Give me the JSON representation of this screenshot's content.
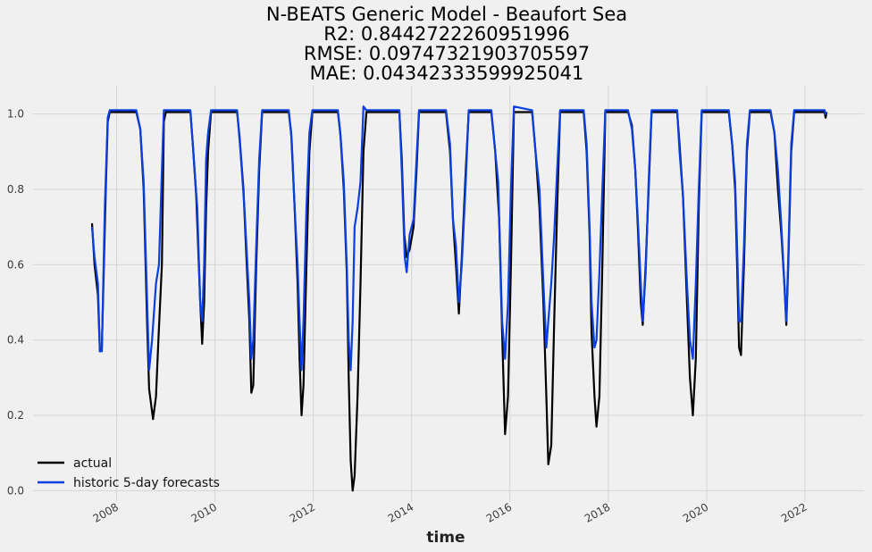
{
  "chart_data": {
    "type": "line",
    "title_lines": [
      "N-BEATS Generic Model - Beaufort Sea",
      "R2: 0.8442722260951996",
      "RMSE: 0.09747321903705597",
      "MAE: 0.04342333599925041"
    ],
    "xlabel": "time",
    "ylabel": "",
    "xlim": [
      2006.3,
      2023.2
    ],
    "ylim": [
      -0.03,
      1.075
    ],
    "x_ticks": [
      2008,
      2010,
      2012,
      2014,
      2016,
      2018,
      2020,
      2022
    ],
    "x_tick_labels": [
      "2008",
      "2010",
      "2012",
      "2014",
      "2016",
      "2018",
      "2020",
      "2022"
    ],
    "y_ticks": [
      0.0,
      0.2,
      0.4,
      0.6,
      0.8,
      1.0
    ],
    "y_tick_labels": [
      "0.0",
      "0.2",
      "0.4",
      "0.6",
      "0.8",
      "1.0"
    ],
    "grid": true,
    "legend_position": "lower-left",
    "series": [
      {
        "name": "actual",
        "color": "#000000",
        "points": [
          [
            2007.5,
            0.71
          ],
          [
            2007.55,
            0.6
          ],
          [
            2007.62,
            0.52
          ],
          [
            2007.66,
            0.37
          ],
          [
            2007.7,
            0.38
          ],
          [
            2007.78,
            0.8
          ],
          [
            2007.82,
            0.98
          ],
          [
            2007.86,
            1.005
          ],
          [
            2008.4,
            1.005
          ],
          [
            2008.48,
            0.96
          ],
          [
            2008.55,
            0.8
          ],
          [
            2008.62,
            0.44
          ],
          [
            2008.66,
            0.27
          ],
          [
            2008.7,
            0.23
          ],
          [
            2008.74,
            0.19
          ],
          [
            2008.8,
            0.25
          ],
          [
            2008.85,
            0.4
          ],
          [
            2008.92,
            0.6
          ],
          [
            2008.96,
            0.98
          ],
          [
            2009.0,
            1.005
          ],
          [
            2009.5,
            1.005
          ],
          [
            2009.55,
            0.92
          ],
          [
            2009.62,
            0.78
          ],
          [
            2009.7,
            0.5
          ],
          [
            2009.74,
            0.39
          ],
          [
            2009.78,
            0.5
          ],
          [
            2009.82,
            0.75
          ],
          [
            2009.86,
            0.9
          ],
          [
            2009.92,
            1.005
          ],
          [
            2010.45,
            1.005
          ],
          [
            2010.5,
            0.94
          ],
          [
            2010.58,
            0.8
          ],
          [
            2010.64,
            0.62
          ],
          [
            2010.7,
            0.45
          ],
          [
            2010.74,
            0.26
          ],
          [
            2010.78,
            0.28
          ],
          [
            2010.84,
            0.6
          ],
          [
            2010.9,
            0.85
          ],
          [
            2010.96,
            1.005
          ],
          [
            2011.5,
            1.005
          ],
          [
            2011.55,
            0.95
          ],
          [
            2011.62,
            0.75
          ],
          [
            2011.68,
            0.55
          ],
          [
            2011.72,
            0.35
          ],
          [
            2011.76,
            0.2
          ],
          [
            2011.8,
            0.28
          ],
          [
            2011.86,
            0.6
          ],
          [
            2011.92,
            0.9
          ],
          [
            2011.98,
            1.005
          ],
          [
            2012.5,
            1.005
          ],
          [
            2012.55,
            0.95
          ],
          [
            2012.62,
            0.8
          ],
          [
            2012.68,
            0.58
          ],
          [
            2012.72,
            0.3
          ],
          [
            2012.76,
            0.08
          ],
          [
            2012.8,
            0.0
          ],
          [
            2012.84,
            0.04
          ],
          [
            2012.9,
            0.25
          ],
          [
            2012.96,
            0.55
          ],
          [
            2013.02,
            0.9
          ],
          [
            2013.08,
            1.005
          ],
          [
            2013.75,
            1.005
          ],
          [
            2013.8,
            0.88
          ],
          [
            2013.85,
            0.68
          ],
          [
            2013.9,
            0.62
          ],
          [
            2013.96,
            0.64
          ],
          [
            2014.04,
            0.7
          ],
          [
            2014.1,
            0.85
          ],
          [
            2014.15,
            1.005
          ],
          [
            2014.7,
            1.005
          ],
          [
            2014.78,
            0.9
          ],
          [
            2014.84,
            0.72
          ],
          [
            2014.9,
            0.6
          ],
          [
            2014.96,
            0.47
          ],
          [
            2015.02,
            0.62
          ],
          [
            2015.1,
            0.85
          ],
          [
            2015.16,
            1.005
          ],
          [
            2015.62,
            1.005
          ],
          [
            2015.7,
            0.9
          ],
          [
            2015.78,
            0.72
          ],
          [
            2015.84,
            0.42
          ],
          [
            2015.9,
            0.15
          ],
          [
            2015.96,
            0.25
          ],
          [
            2016.02,
            0.6
          ],
          [
            2016.08,
            1.005
          ],
          [
            2016.45,
            1.005
          ],
          [
            2016.52,
            0.9
          ],
          [
            2016.6,
            0.75
          ],
          [
            2016.68,
            0.5
          ],
          [
            2016.74,
            0.25
          ],
          [
            2016.78,
            0.07
          ],
          [
            2016.84,
            0.12
          ],
          [
            2016.9,
            0.45
          ],
          [
            2016.96,
            0.75
          ],
          [
            2017.02,
            1.005
          ],
          [
            2017.5,
            1.005
          ],
          [
            2017.56,
            0.9
          ],
          [
            2017.62,
            0.68
          ],
          [
            2017.66,
            0.42
          ],
          [
            2017.72,
            0.25
          ],
          [
            2017.76,
            0.17
          ],
          [
            2017.82,
            0.25
          ],
          [
            2017.88,
            0.6
          ],
          [
            2017.94,
            1.005
          ],
          [
            2018.4,
            1.005
          ],
          [
            2018.48,
            0.97
          ],
          [
            2018.55,
            0.85
          ],
          [
            2018.6,
            0.7
          ],
          [
            2018.66,
            0.5
          ],
          [
            2018.7,
            0.44
          ],
          [
            2018.76,
            0.6
          ],
          [
            2018.82,
            0.8
          ],
          [
            2018.88,
            1.005
          ],
          [
            2019.4,
            1.005
          ],
          [
            2019.45,
            0.92
          ],
          [
            2019.52,
            0.78
          ],
          [
            2019.6,
            0.5
          ],
          [
            2019.66,
            0.3
          ],
          [
            2019.72,
            0.2
          ],
          [
            2019.78,
            0.35
          ],
          [
            2019.84,
            0.75
          ],
          [
            2019.9,
            1.005
          ],
          [
            2020.45,
            1.005
          ],
          [
            2020.52,
            0.92
          ],
          [
            2020.58,
            0.8
          ],
          [
            2020.62,
            0.6
          ],
          [
            2020.66,
            0.38
          ],
          [
            2020.7,
            0.36
          ],
          [
            2020.76,
            0.6
          ],
          [
            2020.82,
            0.9
          ],
          [
            2020.88,
            1.005
          ],
          [
            2021.3,
            1.005
          ],
          [
            2021.38,
            0.95
          ],
          [
            2021.45,
            0.8
          ],
          [
            2021.52,
            0.68
          ],
          [
            2021.58,
            0.55
          ],
          [
            2021.62,
            0.44
          ],
          [
            2021.66,
            0.6
          ],
          [
            2021.72,
            0.9
          ],
          [
            2021.78,
            1.005
          ],
          [
            2022.4,
            1.005
          ],
          [
            2022.42,
            0.99
          ],
          [
            2022.44,
            1.005
          ]
        ]
      },
      {
        "name": "historic 5-day forecasts",
        "color": "#0a3fe0",
        "points": [
          [
            2007.5,
            0.7
          ],
          [
            2007.55,
            0.62
          ],
          [
            2007.62,
            0.55
          ],
          [
            2007.66,
            0.37
          ],
          [
            2007.7,
            0.37
          ],
          [
            2007.76,
            0.75
          ],
          [
            2007.82,
            0.99
          ],
          [
            2007.86,
            1.01
          ],
          [
            2008.4,
            1.01
          ],
          [
            2008.48,
            0.96
          ],
          [
            2008.55,
            0.82
          ],
          [
            2008.62,
            0.5
          ],
          [
            2008.66,
            0.32
          ],
          [
            2008.72,
            0.4
          ],
          [
            2008.8,
            0.55
          ],
          [
            2008.86,
            0.6
          ],
          [
            2008.92,
            0.85
          ],
          [
            2008.96,
            1.01
          ],
          [
            2009.5,
            1.01
          ],
          [
            2009.56,
            0.9
          ],
          [
            2009.64,
            0.75
          ],
          [
            2009.7,
            0.5
          ],
          [
            2009.74,
            0.45
          ],
          [
            2009.78,
            0.6
          ],
          [
            2009.82,
            0.88
          ],
          [
            2009.86,
            0.95
          ],
          [
            2009.92,
            1.01
          ],
          [
            2010.45,
            1.01
          ],
          [
            2010.52,
            0.9
          ],
          [
            2010.6,
            0.75
          ],
          [
            2010.64,
            0.65
          ],
          [
            2010.7,
            0.5
          ],
          [
            2010.74,
            0.35
          ],
          [
            2010.78,
            0.4
          ],
          [
            2010.84,
            0.65
          ],
          [
            2010.9,
            0.88
          ],
          [
            2010.96,
            1.01
          ],
          [
            2011.5,
            1.01
          ],
          [
            2011.56,
            0.93
          ],
          [
            2011.62,
            0.75
          ],
          [
            2011.68,
            0.6
          ],
          [
            2011.72,
            0.45
          ],
          [
            2011.76,
            0.32
          ],
          [
            2011.8,
            0.45
          ],
          [
            2011.86,
            0.75
          ],
          [
            2011.92,
            0.95
          ],
          [
            2011.98,
            1.01
          ],
          [
            2012.5,
            1.01
          ],
          [
            2012.56,
            0.93
          ],
          [
            2012.62,
            0.82
          ],
          [
            2012.68,
            0.6
          ],
          [
            2012.72,
            0.4
          ],
          [
            2012.76,
            0.32
          ],
          [
            2012.8,
            0.45
          ],
          [
            2012.84,
            0.7
          ],
          [
            2012.9,
            0.75
          ],
          [
            2012.96,
            0.82
          ],
          [
            2013.02,
            1.02
          ],
          [
            2013.08,
            1.01
          ],
          [
            2013.75,
            1.01
          ],
          [
            2013.8,
            0.85
          ],
          [
            2013.86,
            0.62
          ],
          [
            2013.9,
            0.58
          ],
          [
            2013.96,
            0.68
          ],
          [
            2014.04,
            0.72
          ],
          [
            2014.1,
            0.88
          ],
          [
            2014.15,
            1.01
          ],
          [
            2014.7,
            1.01
          ],
          [
            2014.78,
            0.92
          ],
          [
            2014.84,
            0.72
          ],
          [
            2014.9,
            0.65
          ],
          [
            2014.96,
            0.5
          ],
          [
            2015.02,
            0.6
          ],
          [
            2015.1,
            0.82
          ],
          [
            2015.16,
            1.01
          ],
          [
            2015.62,
            1.01
          ],
          [
            2015.7,
            0.9
          ],
          [
            2015.76,
            0.82
          ],
          [
            2015.84,
            0.45
          ],
          [
            2015.9,
            0.35
          ],
          [
            2015.96,
            0.5
          ],
          [
            2016.02,
            0.8
          ],
          [
            2016.08,
            1.02
          ],
          [
            2016.45,
            1.01
          ],
          [
            2016.52,
            0.9
          ],
          [
            2016.6,
            0.8
          ],
          [
            2016.68,
            0.55
          ],
          [
            2016.74,
            0.38
          ],
          [
            2016.78,
            0.45
          ],
          [
            2016.84,
            0.55
          ],
          [
            2016.9,
            0.68
          ],
          [
            2016.96,
            0.85
          ],
          [
            2017.02,
            1.01
          ],
          [
            2017.5,
            1.01
          ],
          [
            2017.56,
            0.92
          ],
          [
            2017.62,
            0.7
          ],
          [
            2017.66,
            0.5
          ],
          [
            2017.72,
            0.38
          ],
          [
            2017.76,
            0.4
          ],
          [
            2017.82,
            0.58
          ],
          [
            2017.88,
            0.8
          ],
          [
            2017.94,
            1.01
          ],
          [
            2018.4,
            1.01
          ],
          [
            2018.48,
            0.96
          ],
          [
            2018.55,
            0.85
          ],
          [
            2018.6,
            0.72
          ],
          [
            2018.66,
            0.55
          ],
          [
            2018.7,
            0.45
          ],
          [
            2018.76,
            0.58
          ],
          [
            2018.82,
            0.82
          ],
          [
            2018.88,
            1.01
          ],
          [
            2019.4,
            1.01
          ],
          [
            2019.45,
            0.9
          ],
          [
            2019.52,
            0.78
          ],
          [
            2019.6,
            0.55
          ],
          [
            2019.66,
            0.4
          ],
          [
            2019.72,
            0.35
          ],
          [
            2019.78,
            0.55
          ],
          [
            2019.84,
            0.8
          ],
          [
            2019.9,
            1.01
          ],
          [
            2020.45,
            1.01
          ],
          [
            2020.52,
            0.92
          ],
          [
            2020.58,
            0.82
          ],
          [
            2020.62,
            0.65
          ],
          [
            2020.66,
            0.45
          ],
          [
            2020.7,
            0.45
          ],
          [
            2020.76,
            0.65
          ],
          [
            2020.82,
            0.92
          ],
          [
            2020.88,
            1.01
          ],
          [
            2021.3,
            1.01
          ],
          [
            2021.38,
            0.95
          ],
          [
            2021.45,
            0.85
          ],
          [
            2021.52,
            0.7
          ],
          [
            2021.58,
            0.55
          ],
          [
            2021.62,
            0.45
          ],
          [
            2021.66,
            0.62
          ],
          [
            2021.72,
            0.92
          ],
          [
            2021.78,
            1.01
          ],
          [
            2022.4,
            1.01
          ],
          [
            2022.42,
            1.0
          ],
          [
            2022.44,
            1.0
          ]
        ]
      }
    ]
  }
}
